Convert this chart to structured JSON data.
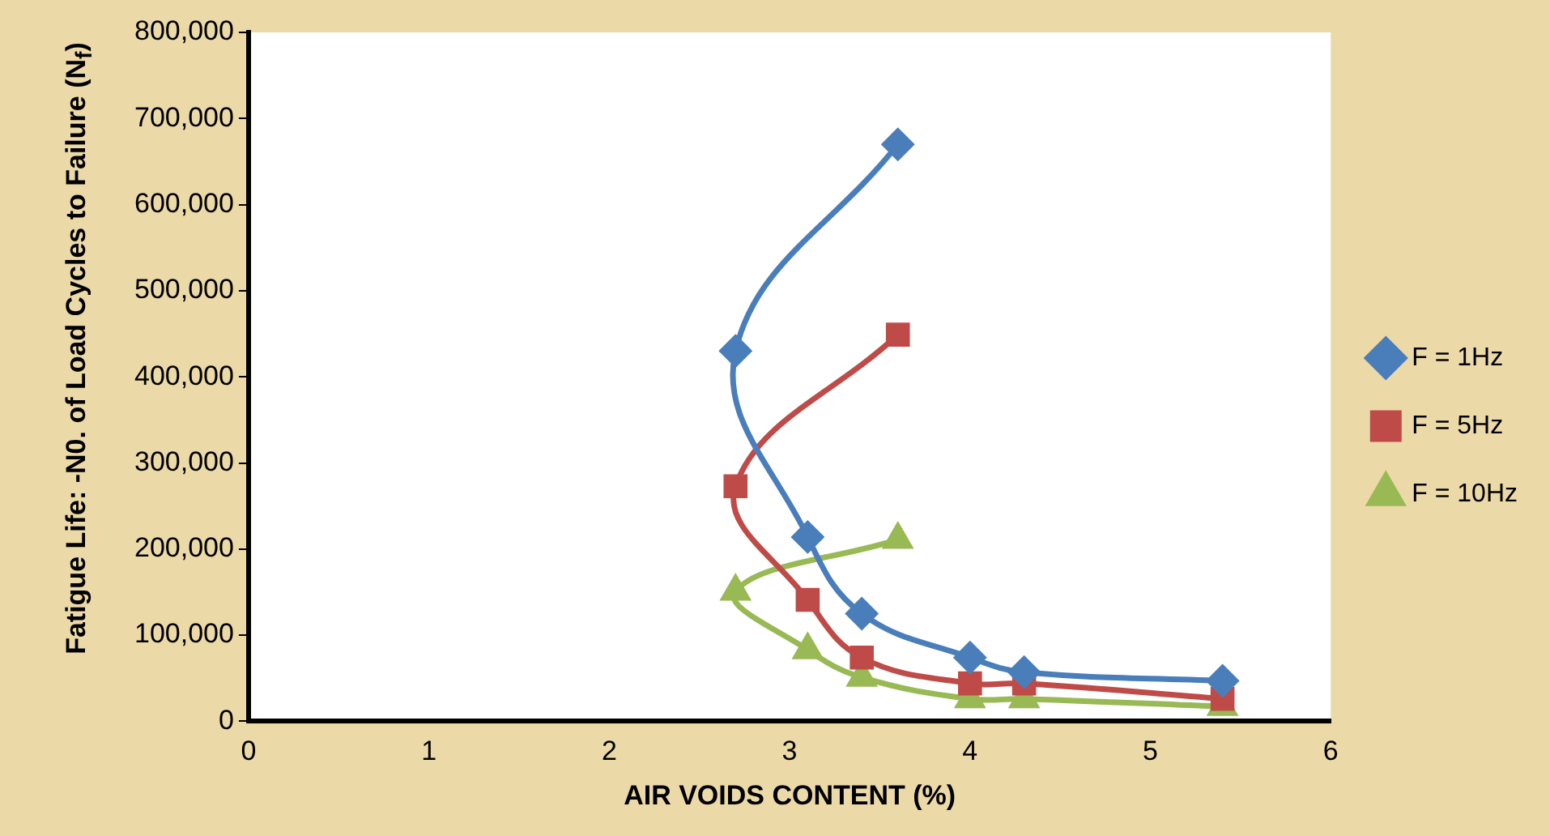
{
  "chart_data": {
    "type": "line",
    "xlabel": "AIR VOIDS CONTENT (%)",
    "ylabel": "Fatigue Life: -N0. of Load Cycles to Failure (N$_{f}$)",
    "xlim": [
      0,
      6
    ],
    "xticks": [
      0,
      1,
      2,
      3,
      4,
      5,
      6
    ],
    "ylim": [
      0,
      800000
    ],
    "yticks": [
      0,
      {
        "value": 100000,
        "label": "100,000"
      },
      {
        "value": 200000,
        "label": "200,000"
      },
      {
        "value": 300000,
        "label": "300,000"
      },
      {
        "value": 400000,
        "label": "400,000"
      },
      {
        "value": 500000,
        "label": "500,000"
      },
      {
        "value": 600000,
        "label": "600,000"
      },
      {
        "value": 700000,
        "label": "700,000"
      },
      {
        "value": 800000,
        "label": "800,000"
      }
    ],
    "grid": false,
    "legend": "right",
    "series": [
      {
        "name": "F = 1Hz",
        "color": "#4a7ebb",
        "marker": "diamond",
        "x": [
          3.6,
          2.7,
          3.1,
          3.4,
          4.0,
          4.3,
          5.4
        ],
        "values": [
          670000,
          430000,
          214000,
          125000,
          74000,
          57000,
          47000
        ]
      },
      {
        "name": "F = 5Hz",
        "color": "#be4b48",
        "marker": "square",
        "x": [
          3.6,
          2.7,
          3.1,
          3.4,
          4.0,
          4.3,
          5.4
        ],
        "values": [
          449000,
          273000,
          141000,
          74000,
          44000,
          44000,
          26000
        ]
      },
      {
        "name": "F = 10Hz",
        "color": "#98b954",
        "marker": "triangle",
        "x": [
          3.6,
          2.7,
          3.1,
          3.4,
          4.0,
          4.3,
          5.4
        ],
        "values": [
          211000,
          151000,
          83000,
          51000,
          26000,
          26000,
          17000
        ]
      }
    ]
  }
}
